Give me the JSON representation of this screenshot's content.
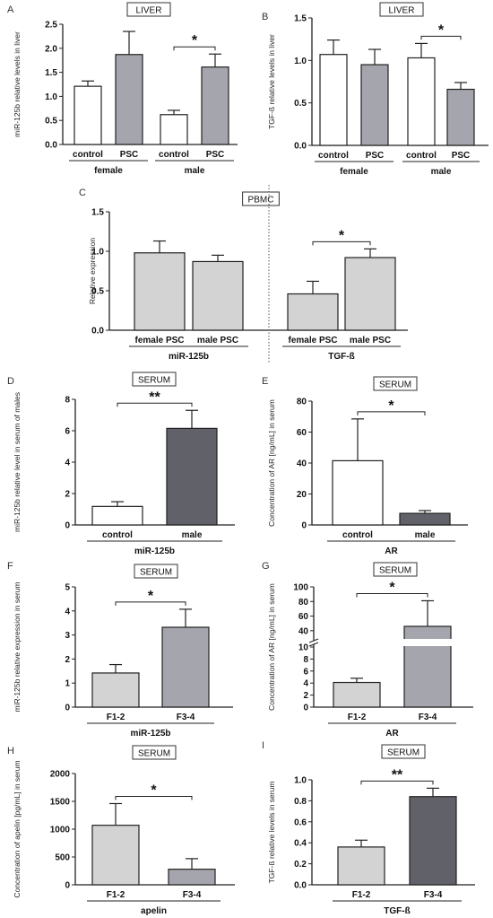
{
  "chart_data": [
    {
      "panel": "A",
      "type": "bar",
      "boxed_title": "LIVER",
      "ylabel": "miR-125b relative levels in liver",
      "ylim": [
        0,
        2.5
      ],
      "yticks": [
        "0.0",
        "0.5",
        "1.0",
        "1.5",
        "2.0",
        "2.5"
      ],
      "ytick_vals": [
        0,
        0.5,
        1,
        1.5,
        2,
        2.5
      ],
      "categories": [
        "control",
        "PSC",
        "control",
        "PSC"
      ],
      "values": [
        1.21,
        1.87,
        0.62,
        1.61
      ],
      "errors": [
        0.11,
        0.48,
        0.09,
        0.27
      ],
      "fills": [
        "#ffffff",
        "#a5a5ad",
        "#ffffff",
        "#a5a5ad"
      ],
      "groups": [
        {
          "label": "female",
          "from": 0,
          "to": 1
        },
        {
          "label": "male",
          "from": 2,
          "to": 3
        }
      ],
      "sig": [
        {
          "from": 2,
          "to": 3,
          "label": "*"
        }
      ]
    },
    {
      "panel": "B",
      "type": "bar",
      "boxed_title": "LIVER",
      "ylabel": "TGF-ß relative levels in liver",
      "ylim": [
        0,
        1.5
      ],
      "yticks": [
        "0.0",
        "0.5",
        "1.0",
        "1.5"
      ],
      "ytick_vals": [
        0,
        0.5,
        1,
        1.5
      ],
      "categories": [
        "control",
        "PSC",
        "control",
        "PSC"
      ],
      "values": [
        1.07,
        0.95,
        1.03,
        0.66
      ],
      "errors": [
        0.17,
        0.18,
        0.17,
        0.08
      ],
      "fills": [
        "#ffffff",
        "#a5a5ad",
        "#ffffff",
        "#a5a5ad"
      ],
      "groups": [
        {
          "label": "female",
          "from": 0,
          "to": 1
        },
        {
          "label": "male",
          "from": 2,
          "to": 3
        }
      ],
      "sig": [
        {
          "from": 2,
          "to": 3,
          "label": "*"
        }
      ]
    },
    {
      "panel": "C",
      "type": "bar",
      "boxed_title": "PBMC",
      "ylabel": "Relative expression",
      "ylim": [
        0,
        1.5
      ],
      "yticks": [
        "0.0",
        "0.5",
        "1.0",
        "1.5"
      ],
      "ytick_vals": [
        0,
        0.5,
        1,
        1.5
      ],
      "categories": [
        "female PSC",
        "male PSC",
        "female PSC",
        "male PSC"
      ],
      "values": [
        0.98,
        0.87,
        0.46,
        0.92
      ],
      "errors": [
        0.15,
        0.08,
        0.16,
        0.11
      ],
      "fills": [
        "#d3d3d3",
        "#d3d3d3",
        "#d3d3d3",
        "#d3d3d3"
      ],
      "groups": [
        {
          "label": "miR-125b",
          "from": 0,
          "to": 1
        },
        {
          "label": "TGF-ß",
          "from": 2,
          "to": 3
        }
      ],
      "sig": [
        {
          "from": 2,
          "to": 3,
          "label": "*"
        }
      ]
    },
    {
      "panel": "D",
      "type": "bar",
      "boxed_title": "SERUM",
      "ylabel": "miR-125b relative level in serum of males",
      "ylim": [
        0,
        8
      ],
      "yticks": [
        "0",
        "2",
        "4",
        "6",
        "8"
      ],
      "ytick_vals": [
        0,
        2,
        4,
        6,
        8
      ],
      "categories": [
        "control",
        "male"
      ],
      "values": [
        1.18,
        6.15
      ],
      "errors": [
        0.3,
        1.15
      ],
      "fills": [
        "#ffffff",
        "#616169"
      ],
      "groups": [
        {
          "label": "miR-125b",
          "from": 0,
          "to": 1
        }
      ],
      "sig": [
        {
          "from": 0,
          "to": 1,
          "label": "**"
        }
      ]
    },
    {
      "panel": "E",
      "type": "bar",
      "boxed_title": "SERUM",
      "ylabel": "Concentration of AR [ng/mL] in serum",
      "ylim": [
        0,
        80
      ],
      "yticks": [
        "0",
        "20",
        "40",
        "60",
        "80"
      ],
      "ytick_vals": [
        0,
        20,
        40,
        60,
        80
      ],
      "categories": [
        "control",
        "male"
      ],
      "values": [
        41.5,
        7.5
      ],
      "errors": [
        27,
        1.8
      ],
      "fills": [
        "#ffffff",
        "#616169"
      ],
      "groups": [
        {
          "label": "AR",
          "from": 0,
          "to": 1
        }
      ],
      "sig": [
        {
          "from": 0,
          "to": 1,
          "label": "*"
        }
      ]
    },
    {
      "panel": "F",
      "type": "bar",
      "boxed_title": "SERUM",
      "ylabel": "miR-125b relative expression in serum",
      "ylim": [
        0,
        5
      ],
      "yticks": [
        "0",
        "1",
        "2",
        "3",
        "4",
        "5"
      ],
      "ytick_vals": [
        0,
        1,
        2,
        3,
        4,
        5
      ],
      "categories": [
        "F1-2",
        "F3-4"
      ],
      "values": [
        1.42,
        3.32
      ],
      "errors": [
        0.35,
        0.75
      ],
      "fills": [
        "#d3d3d3",
        "#a5a5ad"
      ],
      "groups": [
        {
          "label": "miR-125b",
          "from": 0,
          "to": 1
        }
      ],
      "sig": [
        {
          "from": 0,
          "to": 1,
          "label": "*"
        }
      ]
    },
    {
      "panel": "G",
      "type": "bar",
      "boxed_title": "SERUM",
      "ylabel": "Concentration of AR [ng/mL] in serum",
      "ylim": [
        0,
        100
      ],
      "axis_break": true,
      "yticks": [
        "0",
        "2",
        "4",
        "6",
        "8",
        "10",
        "40",
        "60",
        "80",
        "100"
      ],
      "ytick_vals": [
        0,
        2,
        4,
        6,
        8,
        10,
        40,
        60,
        80,
        100
      ],
      "categories": [
        "F1-2",
        "F3-4"
      ],
      "values": [
        4.1,
        46
      ],
      "errors": [
        0.7,
        35
      ],
      "fills": [
        "#d3d3d3",
        "#a5a5ad"
      ],
      "groups": [
        {
          "label": "AR",
          "from": 0,
          "to": 1
        }
      ],
      "sig": [
        {
          "from": 0,
          "to": 1,
          "label": "*"
        }
      ]
    },
    {
      "panel": "H",
      "type": "bar",
      "boxed_title": "SERUM",
      "ylabel": "Concentration of apelin [pg/mL] in serum",
      "ylim": [
        0,
        2000
      ],
      "yticks": [
        "0",
        "500",
        "1000",
        "1500",
        "2000"
      ],
      "ytick_vals": [
        0,
        500,
        1000,
        1500,
        2000
      ],
      "categories": [
        "F1-2",
        "F3-4"
      ],
      "values": [
        1070,
        280
      ],
      "errors": [
        390,
        190
      ],
      "fills": [
        "#d3d3d3",
        "#a5a5ad"
      ],
      "groups": [
        {
          "label": "apelin",
          "from": 0,
          "to": 1
        }
      ],
      "sig": [
        {
          "from": 0,
          "to": 1,
          "label": "*"
        }
      ]
    },
    {
      "panel": "I",
      "type": "bar",
      "boxed_title": "SERUM",
      "ylabel": "TGF-ß relative levels in serum",
      "ylim": [
        0,
        1.0
      ],
      "yticks": [
        "0.0",
        "0.2",
        "0.4",
        "0.6",
        "0.8",
        "1.0"
      ],
      "ytick_vals": [
        0,
        0.2,
        0.4,
        0.6,
        0.8,
        1.0
      ],
      "categories": [
        "F1-2",
        "F3-4"
      ],
      "values": [
        0.36,
        0.84
      ],
      "errors": [
        0.065,
        0.08
      ],
      "fills": [
        "#d3d3d3",
        "#616169"
      ],
      "groups": [
        {
          "label": "TGF-ß",
          "from": 0,
          "to": 1
        }
      ],
      "sig": [
        {
          "from": 0,
          "to": 1,
          "label": "**"
        }
      ]
    }
  ]
}
